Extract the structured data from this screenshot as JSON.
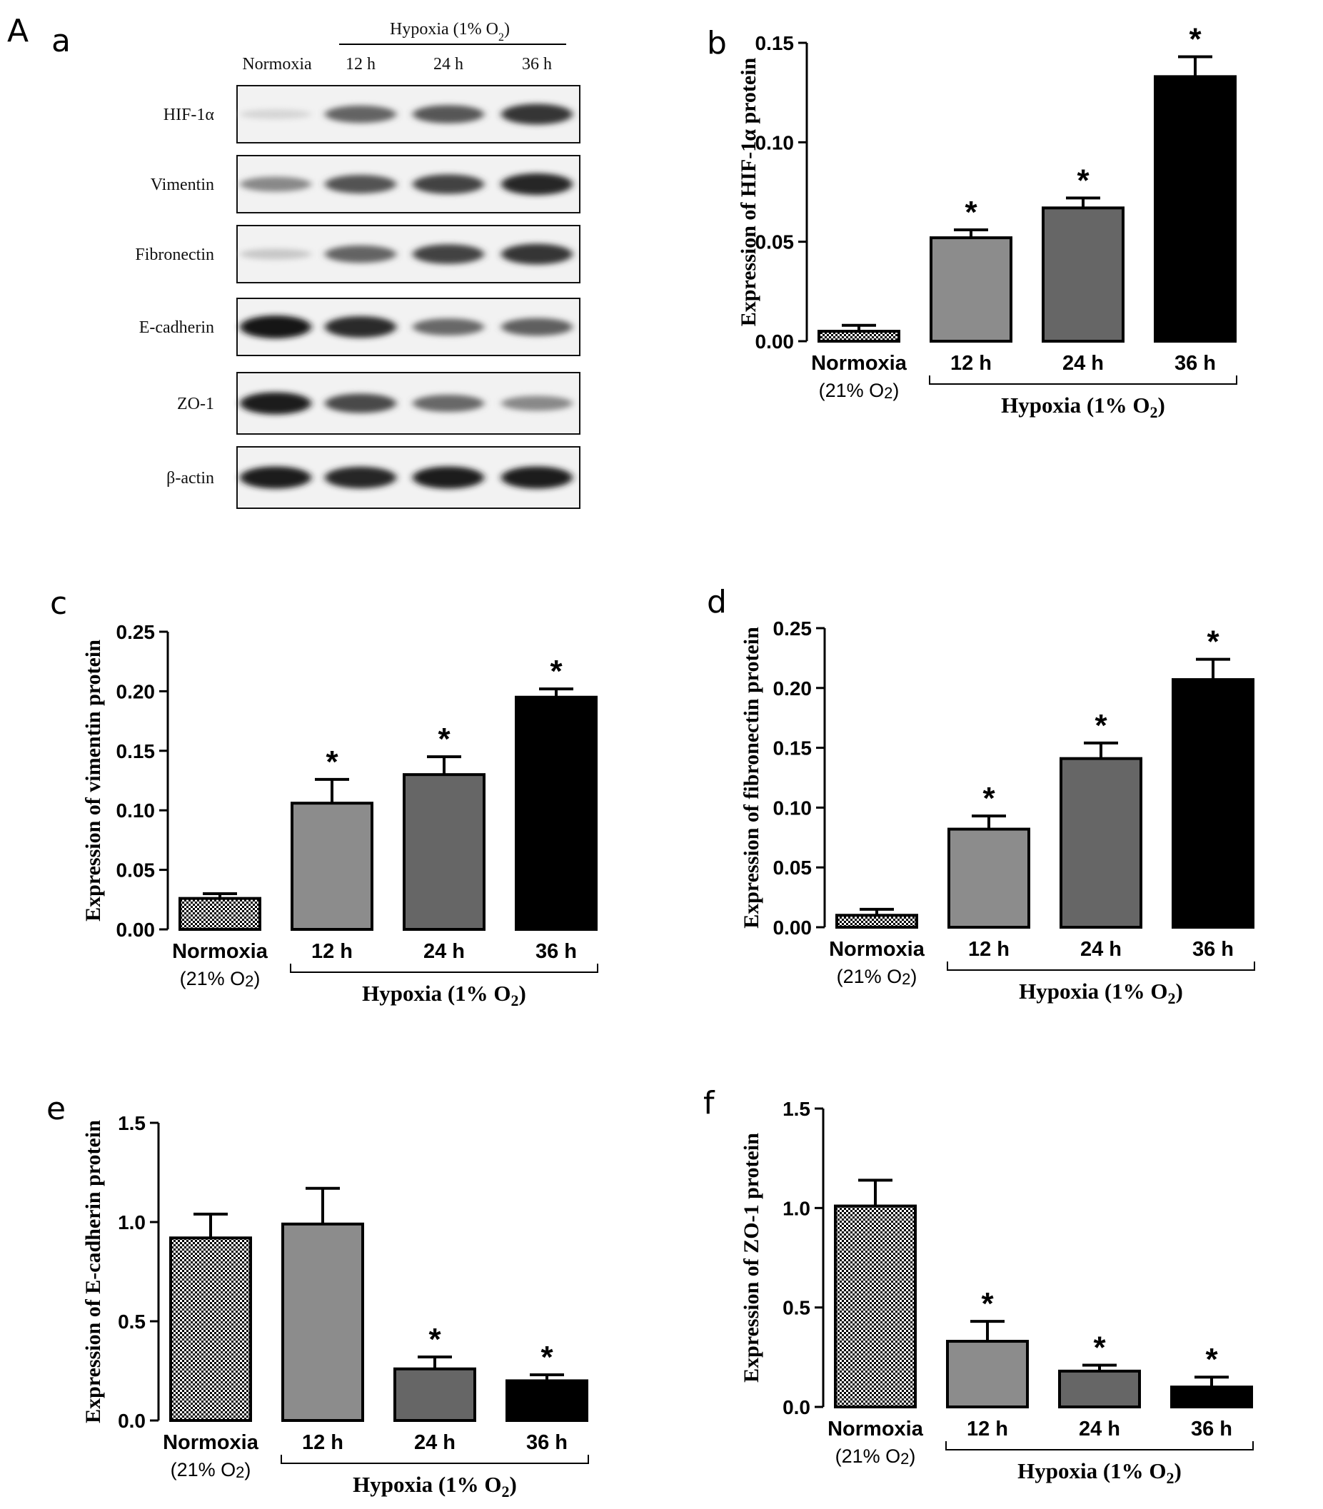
{
  "figure": {
    "label_A": "A",
    "panel_a": "a"
  },
  "blot": {
    "hypoxia_header": "Hypoxia (1% O",
    "hypoxia_sub": "2",
    "hypoxia_close": ")",
    "columns": [
      "Normoxia",
      "12 h",
      "24 h",
      "36 h"
    ],
    "rows": [
      {
        "name": "HIF-1α",
        "intensities": [
          0.08,
          0.62,
          0.68,
          0.85
        ]
      },
      {
        "name": "Vimentin",
        "intensities": [
          0.45,
          0.7,
          0.78,
          0.92
        ]
      },
      {
        "name": "Fibronectin",
        "intensities": [
          0.15,
          0.62,
          0.78,
          0.85
        ]
      },
      {
        "name": "E-cadherin",
        "intensities": [
          1.0,
          0.9,
          0.6,
          0.65
        ]
      },
      {
        "name": "ZO-1",
        "intensities": [
          0.95,
          0.75,
          0.6,
          0.45
        ]
      },
      {
        "name": "β-actin",
        "intensities": [
          0.95,
          0.92,
          0.95,
          0.95
        ]
      }
    ]
  },
  "chart_data": [
    {
      "panel": "b",
      "type": "bar",
      "categories": [
        "Normoxia",
        "12 h",
        "24 h",
        "36 h"
      ],
      "values": [
        0.005,
        0.052,
        0.067,
        0.133
      ],
      "errors": [
        0.003,
        0.004,
        0.005,
        0.01
      ],
      "significant": [
        false,
        true,
        true,
        true
      ],
      "ylabel": "Expression of HIF-1α protein",
      "ylim": [
        0,
        0.15
      ],
      "yticks": [
        "0.00",
        "0.05",
        "0.10",
        "0.15"
      ],
      "legend": "none"
    },
    {
      "panel": "c",
      "type": "bar",
      "categories": [
        "Normoxia",
        "12 h",
        "24 h",
        "36 h"
      ],
      "values": [
        0.026,
        0.106,
        0.13,
        0.195
      ],
      "errors": [
        0.004,
        0.02,
        0.015,
        0.007
      ],
      "significant": [
        false,
        true,
        true,
        true
      ],
      "ylabel": "Expression of  vimentin protein",
      "ylim": [
        0,
        0.25
      ],
      "yticks": [
        "0.00",
        "0.05",
        "0.10",
        "0.15",
        "0.20",
        "0.25"
      ],
      "legend": "none"
    },
    {
      "panel": "d",
      "type": "bar",
      "categories": [
        "Normoxia",
        "12 h",
        "24 h",
        "36 h"
      ],
      "values": [
        0.01,
        0.082,
        0.141,
        0.207
      ],
      "errors": [
        0.005,
        0.011,
        0.013,
        0.017
      ],
      "significant": [
        false,
        true,
        true,
        true
      ],
      "ylabel": "Expression of  fibronectin protein",
      "ylim": [
        0,
        0.25
      ],
      "yticks": [
        "0.00",
        "0.05",
        "0.10",
        "0.15",
        "0.20",
        "0.25"
      ],
      "legend": "none"
    },
    {
      "panel": "e",
      "type": "bar",
      "categories": [
        "Normoxia",
        "12 h",
        "24 h",
        "36 h"
      ],
      "values": [
        0.92,
        0.99,
        0.26,
        0.2
      ],
      "errors": [
        0.12,
        0.18,
        0.06,
        0.03
      ],
      "significant": [
        false,
        false,
        true,
        true
      ],
      "ylabel": "Expression of E-cadherin protein",
      "ylim": [
        0,
        1.5
      ],
      "yticks": [
        "0.0",
        "0.5",
        "1.0",
        "1.5"
      ],
      "legend": "none"
    },
    {
      "panel": "f",
      "type": "bar",
      "categories": [
        "Normoxia",
        "12 h",
        "24 h",
        "36 h"
      ],
      "values": [
        1.01,
        0.33,
        0.18,
        0.1
      ],
      "errors": [
        0.13,
        0.1,
        0.03,
        0.05
      ],
      "significant": [
        false,
        true,
        true,
        true
      ],
      "ylabel": "Expression of ZO-1 protein",
      "ylim": [
        0,
        1.5
      ],
      "yticks": [
        "0.0",
        "0.5",
        "1.0",
        "1.5"
      ],
      "legend": "none"
    }
  ],
  "common_labels": {
    "normoxia_line1": "Normoxia",
    "normoxia_line2": "(21% O",
    "normoxia_sub": "2",
    "normoxia_close": ")",
    "group_label": "Hypoxia (1% O",
    "group_sub": "2",
    "group_close": ")",
    "significance_mark": "*"
  },
  "colors": {
    "bar_12h": "#8c8c8c",
    "bar_24h": "#666666",
    "bar_36h": "#000000",
    "normoxia_pattern": "checkered"
  }
}
